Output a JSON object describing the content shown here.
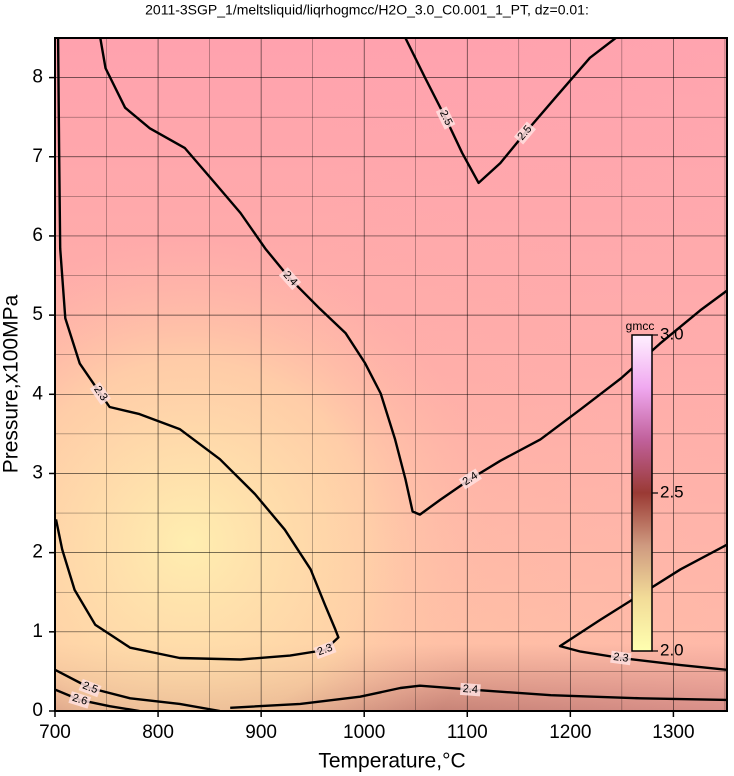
{
  "chart_data": {
    "type": "contour",
    "title": "2011-3SGP_1/meltsliquid/liqrhogmcc/H2O_3.0_C0.001_1_PT, dz=0.01:",
    "xlabel": "Temperature,°C",
    "ylabel": "Pressure,x100MPa",
    "xlim": [
      700,
      1352
    ],
    "ylim": [
      0,
      8.5
    ],
    "xticks": [
      700,
      800,
      900,
      1000,
      1100,
      1200,
      1300
    ],
    "yticks": [
      0,
      1,
      2,
      3,
      4,
      5,
      6,
      7,
      8
    ],
    "xminorticks": [
      750,
      850,
      950,
      1050,
      1150,
      1250,
      1350
    ],
    "yminorticks": [
      0.5,
      1.5,
      2.5,
      3.5,
      4.5,
      5.5,
      6.5,
      7.5,
      8.5
    ],
    "grid": true,
    "line_color": "#000000",
    "contours": [
      {
        "level": 2.4,
        "x": [
          744,
          749,
          768,
          792,
          826,
          855,
          880,
          904,
          928,
          957,
          982,
          1001,
          1016,
          1030,
          1040,
          1047,
          1054,
          1074,
          1103,
          1132,
          1171,
          1210,
          1249,
          1287,
          1326,
          1352
        ],
        "y": [
          8.5,
          8.12,
          7.62,
          7.36,
          7.11,
          6.67,
          6.29,
          5.84,
          5.46,
          5.08,
          4.77,
          4.39,
          4.01,
          3.43,
          2.93,
          2.52,
          2.48,
          2.67,
          2.93,
          3.16,
          3.43,
          3.81,
          4.2,
          4.64,
          5.06,
          5.31
        ]
      },
      {
        "level": 2.5,
        "x": [
          1040,
          1059,
          1079,
          1095,
          1111,
          1132,
          1156,
          1185,
          1219,
          1244
        ],
        "y": [
          8.5,
          8.0,
          7.49,
          7.05,
          6.67,
          6.92,
          7.3,
          7.74,
          8.25,
          8.5
        ]
      },
      {
        "level": 2.3,
        "x": [
          703,
          704,
          705,
          710,
          724,
          744,
          753,
          782,
          821,
          860,
          894,
          923,
          948,
          962,
          972,
          975,
          962,
          928,
          880,
          821,
          773,
          739,
          719,
          707,
          701
        ],
        "y": [
          8.5,
          7.11,
          5.84,
          4.96,
          4.39,
          4.01,
          3.84,
          3.75,
          3.56,
          3.18,
          2.74,
          2.29,
          1.79,
          1.34,
          1.03,
          0.93,
          0.77,
          0.7,
          0.65,
          0.67,
          0.8,
          1.09,
          1.53,
          2.04,
          2.42
        ]
      },
      {
        "level": 2.3,
        "x": [
          1352,
          1307,
          1268,
          1229,
          1190,
          1210,
          1249,
          1307,
          1352
        ],
        "y": [
          2.1,
          1.79,
          1.47,
          1.15,
          0.82,
          0.75,
          0.67,
          0.58,
          0.52
        ]
      },
      {
        "level": 2.4,
        "x": [
          870,
          938,
          996,
          1035,
          1054,
          1103,
          1181,
          1268,
          1352
        ],
        "y": [
          0.04,
          0.09,
          0.18,
          0.29,
          0.32,
          0.27,
          0.2,
          0.16,
          0.14
        ]
      },
      {
        "level": 2.5,
        "x": [
          700,
          734,
          773,
          821,
          860
        ],
        "y": [
          0.52,
          0.29,
          0.16,
          0.09,
          0.0
        ]
      },
      {
        "level": 2.6,
        "x": [
          700,
          724,
          753,
          782
        ],
        "y": [
          0.27,
          0.14,
          0.06,
          0.0
        ]
      }
    ],
    "colorbar": {
      "label": "gmcc",
      "lim": [
        2,
        3
      ],
      "ticks": [
        {
          "value": 2,
          "label": "2.0"
        },
        2.5,
        {
          "value": 3,
          "label": "3.0"
        }
      ],
      "colors": [
        "#ffffb0",
        "#f2dc98",
        "#cf9a80",
        "#9a3a34",
        "#c0609a",
        "#f0a8f0",
        "#fff0ff"
      ]
    }
  }
}
